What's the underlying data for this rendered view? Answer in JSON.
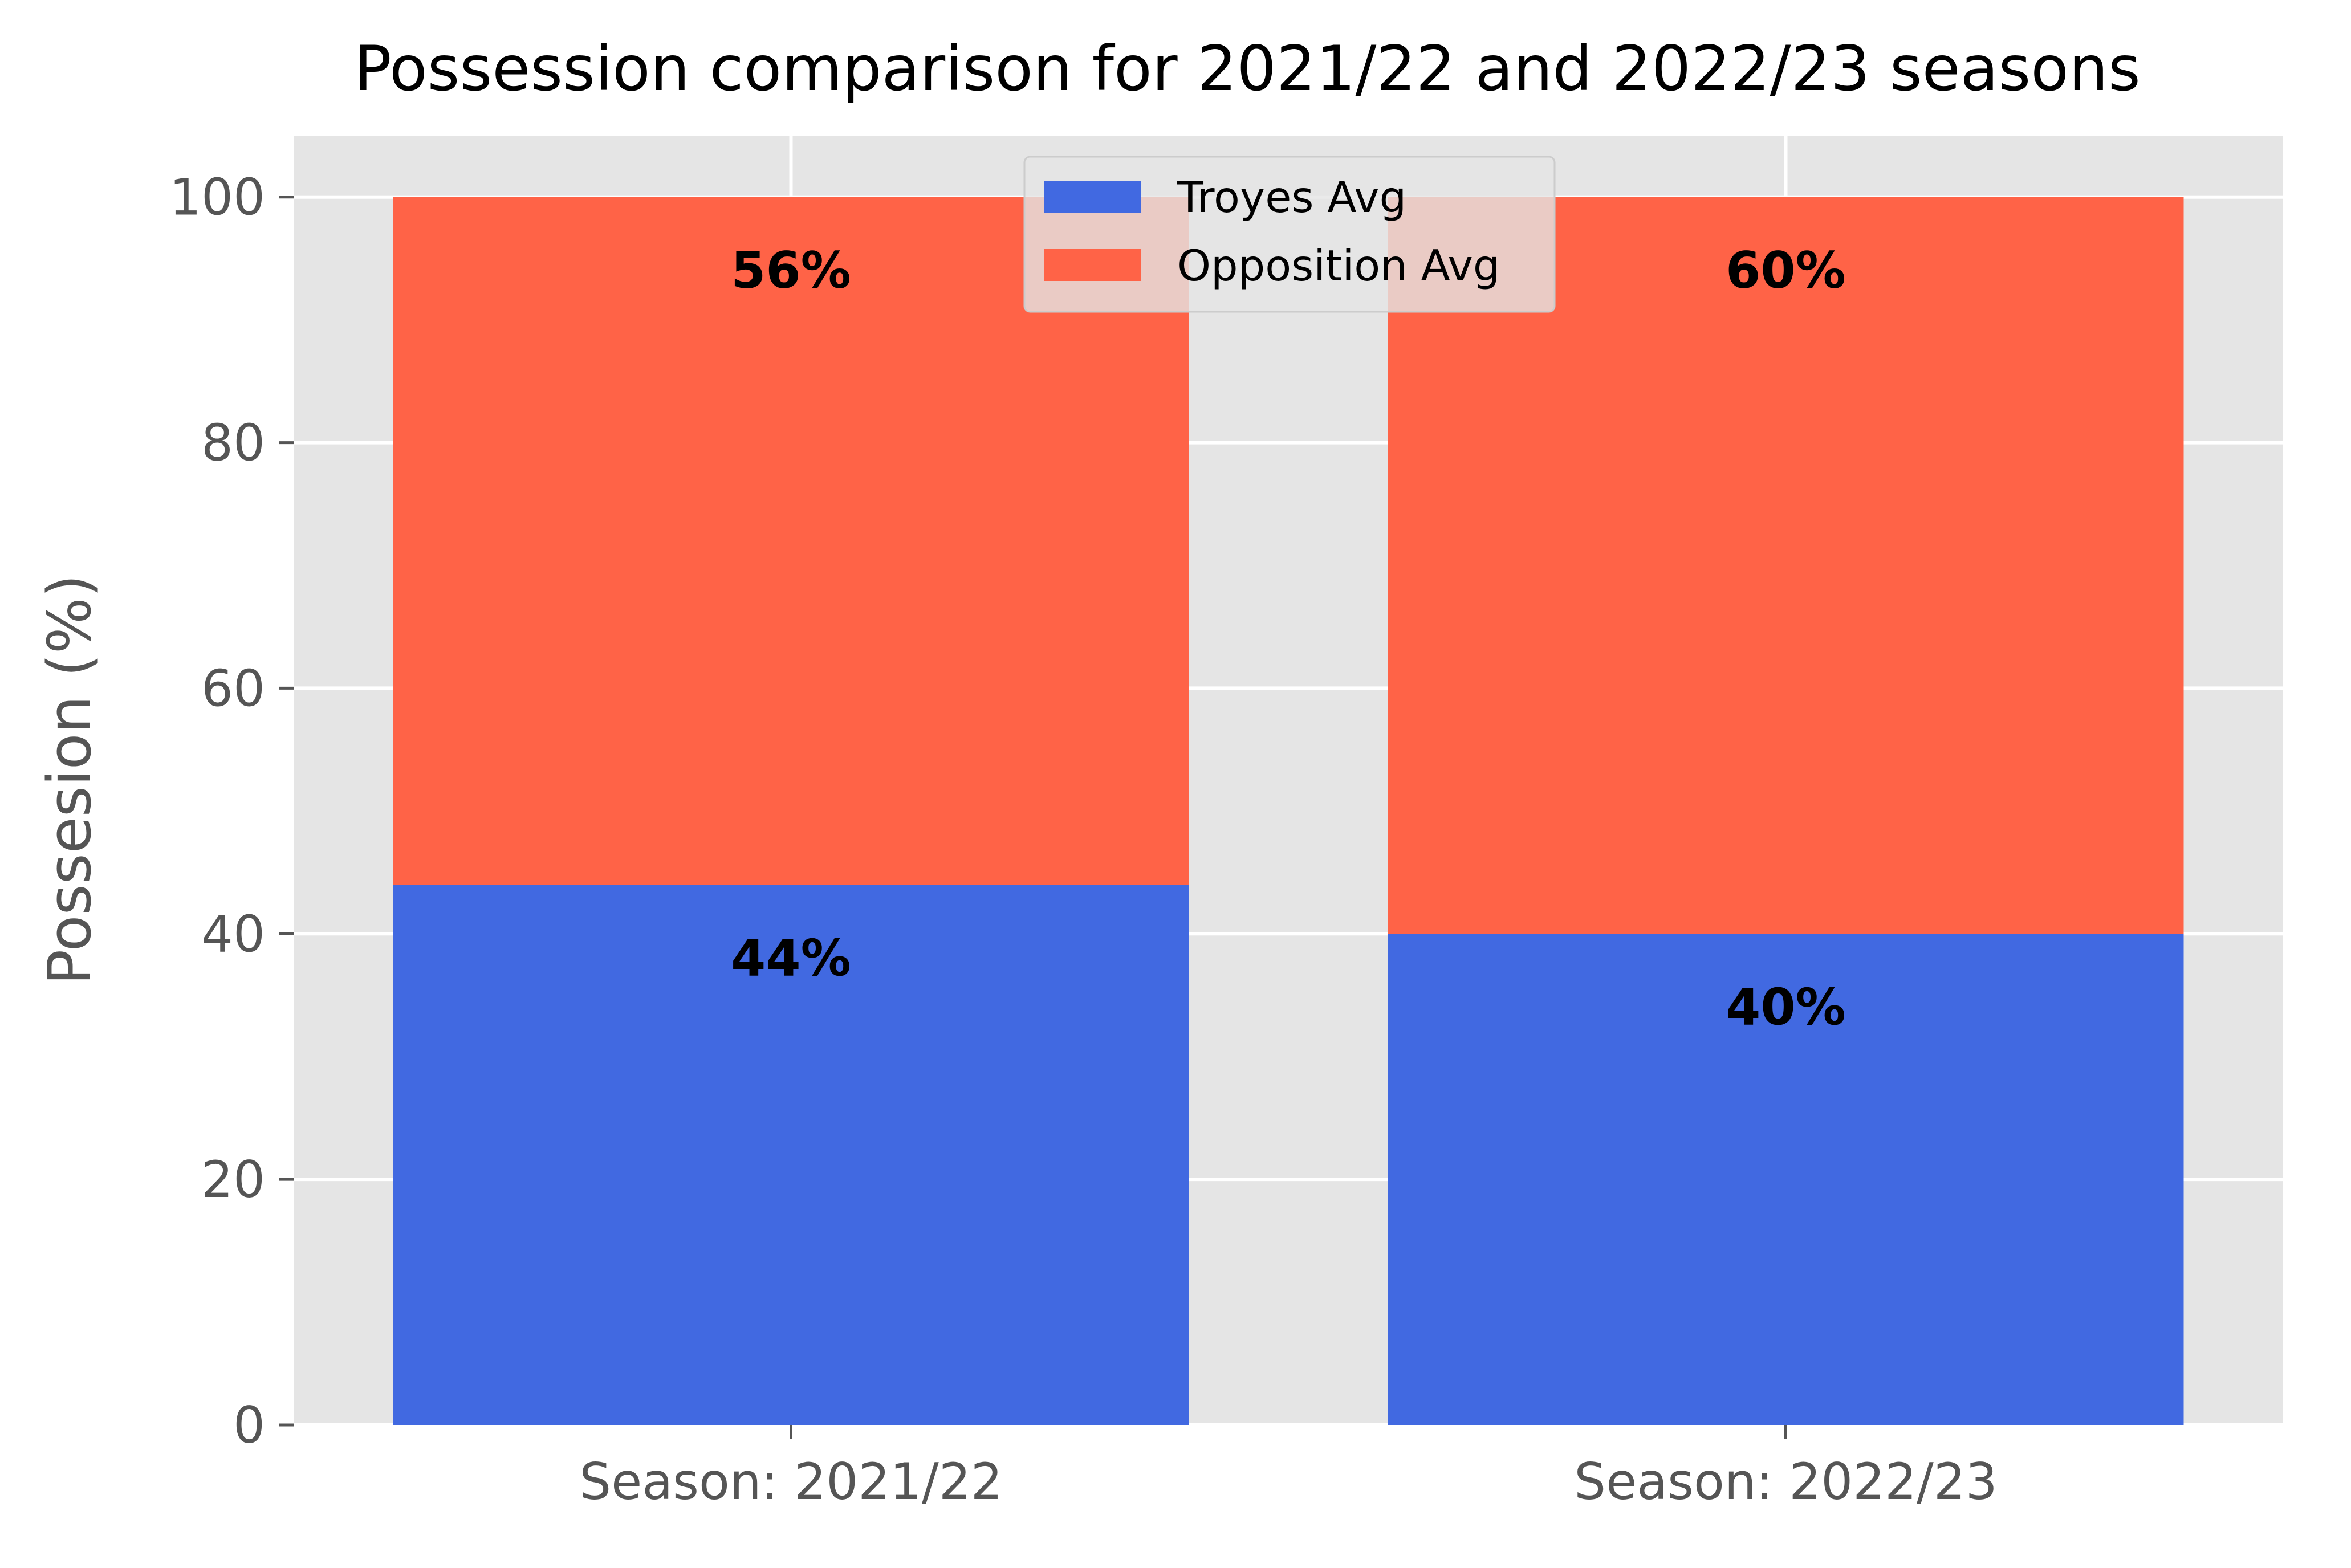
{
  "chart_data": {
    "type": "bar",
    "stacked": true,
    "title": "Possession comparison for 2021/22 and 2022/23 seasons",
    "xlabel": "",
    "ylabel": "Possesion (%)",
    "categories": [
      "Season: 2021/22",
      "Season: 2022/23"
    ],
    "series": [
      {
        "name": "Troyes Avg",
        "values": [
          44,
          40
        ],
        "color": "#4169E1",
        "labels": [
          "44%",
          "40%"
        ]
      },
      {
        "name": "Opposition Avg",
        "values": [
          56,
          60
        ],
        "color": "#FF6347",
        "labels": [
          "56%",
          "60%"
        ]
      }
    ],
    "ylim": [
      0,
      105
    ],
    "yticks": [
      0,
      20,
      40,
      60,
      80,
      100
    ],
    "grid": true,
    "background_color": "#E5E5E5",
    "legend_position": "top-center"
  }
}
